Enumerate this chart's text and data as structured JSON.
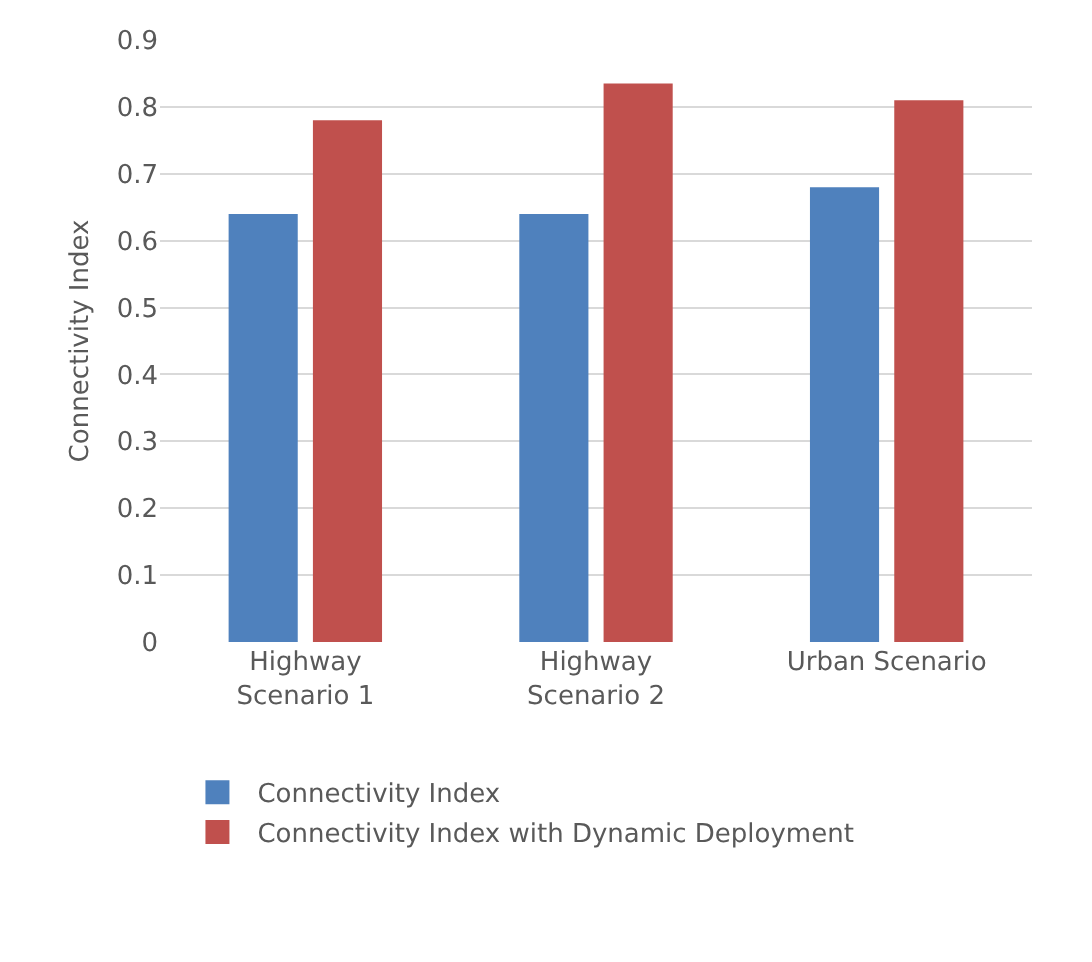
{
  "chart_data": {
    "type": "bar",
    "ylabel": "Connectivity Index",
    "categories": [
      "Highway\nScenario 1",
      "Highway\nScenario 2",
      "Urban Scenario"
    ],
    "series": [
      {
        "name": "Connectivity Index",
        "color": "#4f81bd",
        "values": [
          0.64,
          0.64,
          0.68
        ]
      },
      {
        "name": "Connectivity Index with Dynamic Deployment",
        "color": "#c0504d",
        "values": [
          0.78,
          0.835,
          0.81
        ]
      }
    ],
    "ylim": [
      0,
      0.9
    ],
    "yticks": [
      0,
      0.1,
      0.2,
      0.3,
      0.4,
      0.5,
      0.6,
      0.7,
      0.8,
      0.9
    ],
    "grid": "y",
    "legend": "bottom"
  }
}
